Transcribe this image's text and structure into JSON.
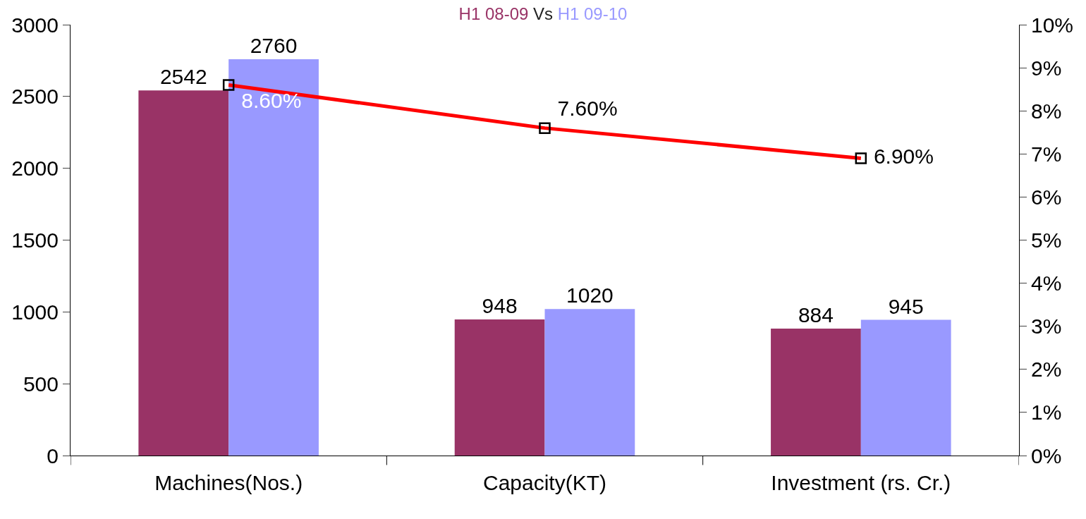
{
  "chart_data": {
    "type": "bar",
    "title": "Vs",
    "categories": [
      "Machines(Nos.)",
      "Capacity(KT)",
      "Investment (rs. Cr.)"
    ],
    "series": [
      {
        "name": "H1 08-09",
        "color": "#993366",
        "values": [
          2542,
          948,
          884
        ],
        "value_labels": [
          "2542",
          "948",
          "884"
        ]
      },
      {
        "name": "H1 09-10",
        "color": "#9999ff",
        "values": [
          2760,
          1020,
          945
        ],
        "value_labels": [
          "2760",
          "1020",
          "945"
        ]
      },
      {
        "type": "line",
        "axis": "y2",
        "color": "#ff0000",
        "marker": "square",
        "values": [
          8.6,
          7.6,
          6.9
        ],
        "value_labels": [
          "8.60%",
          "7.60%",
          "6.90%"
        ]
      }
    ],
    "ylim": [
      0,
      3000
    ],
    "yticks": [
      0,
      500,
      1000,
      1500,
      2000,
      2500,
      3000
    ],
    "y2lim": [
      0,
      10
    ],
    "y2ticks": [
      {
        "value": 0,
        "label": "0%"
      },
      {
        "value": 1,
        "label": "1%"
      },
      {
        "value": 2,
        "label": "2%"
      },
      {
        "value": 3,
        "label": "3%"
      },
      {
        "value": 4,
        "label": "4%"
      },
      {
        "value": 5,
        "label": "5%"
      },
      {
        "value": 6,
        "label": "6%"
      },
      {
        "value": 7,
        "label": "7%"
      },
      {
        "value": 8,
        "label": "8%"
      },
      {
        "value": 9,
        "label": "9%"
      },
      {
        "value": 10,
        "label": "10%"
      }
    ],
    "legend": false
  }
}
